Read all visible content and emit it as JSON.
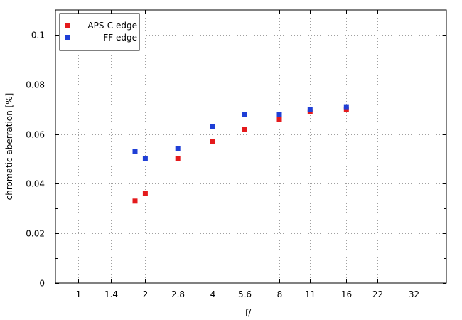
{
  "chart_data": {
    "type": "scatter",
    "xlabel": "f/",
    "ylabel": "chromatic aberration [%]",
    "x_scale": "log",
    "x_ticks": [
      1,
      1.4,
      2,
      2.8,
      4,
      5.6,
      8,
      11,
      16,
      22,
      32
    ],
    "x_tick_labels": [
      "1",
      "1.4",
      "2",
      "2.8",
      "4",
      "5.6",
      "8",
      "11",
      "16",
      "22",
      "32"
    ],
    "xlim": [
      0.79,
      45
    ],
    "ylim": [
      0,
      0.11
    ],
    "y_ticks": [
      0,
      0.02,
      0.04,
      0.06,
      0.08,
      0.1
    ],
    "y_tick_labels": [
      "0",
      "0.02",
      "0.04",
      "0.06",
      "0.08",
      "0.1"
    ],
    "grid": true,
    "legend_position": "top-left",
    "series": [
      {
        "name": "APS-C edge",
        "color": "#e41a1c",
        "x": [
          1.8,
          2,
          2.8,
          4,
          5.6,
          8,
          11,
          16
        ],
        "y": [
          0.033,
          0.036,
          0.05,
          0.057,
          0.062,
          0.066,
          0.069,
          0.07
        ]
      },
      {
        "name": "FF edge",
        "color": "#1f3fd6",
        "x": [
          1.8,
          2,
          2.8,
          4,
          5.6,
          8,
          11,
          16
        ],
        "y": [
          0.053,
          0.05,
          0.054,
          0.063,
          0.068,
          0.068,
          0.07,
          0.071
        ]
      }
    ]
  }
}
